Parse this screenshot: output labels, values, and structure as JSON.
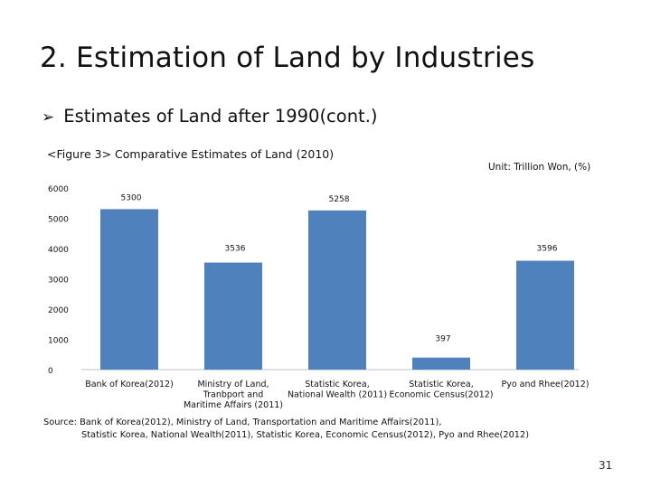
{
  "slide": {
    "title": "2. Estimation of Land by Industries",
    "bullet_marker": "➢",
    "bullet": "Estimates of Land after 1990(cont.)",
    "figure_caption": "<Figure 3> Comparative Estimates of Land (2010)",
    "unit": "Unit: Trillion Won, (%)",
    "source_line1": "Source: Bank of Korea(2012), Ministry of Land, Transportation and Maritime Affairs(2011),",
    "source_line2": "Statistic Korea, National Wealth(2011), Statistic Korea, Economic Census(2012), Pyo and Rhee(2012)",
    "page_number": "31"
  },
  "chart_data": {
    "type": "bar",
    "title": "<Figure 3> Comparative Estimates of Land (2010)",
    "categories": [
      [
        "Bank of Korea(2012)"
      ],
      [
        "Ministry of Land,",
        "Tranbport and",
        "Maritime Affairs (2011)"
      ],
      [
        "Statistic Korea,",
        "National Wealth (2011)"
      ],
      [
        "Statistic Korea,",
        "Economic Census(2012)"
      ],
      [
        "Pyo and Rhee(2012)"
      ]
    ],
    "values": [
      5300,
      3536,
      5258,
      397,
      3596
    ],
    "value_labels": [
      "5300",
      "3536",
      "5258",
      "397",
      "3596"
    ],
    "y_ticks": [
      6000,
      5000,
      4000,
      3000,
      2000,
      1000,
      0
    ],
    "ylim": [
      0,
      6000
    ],
    "bar_color": "#4f81bd",
    "xlabel": "",
    "ylabel": ""
  }
}
